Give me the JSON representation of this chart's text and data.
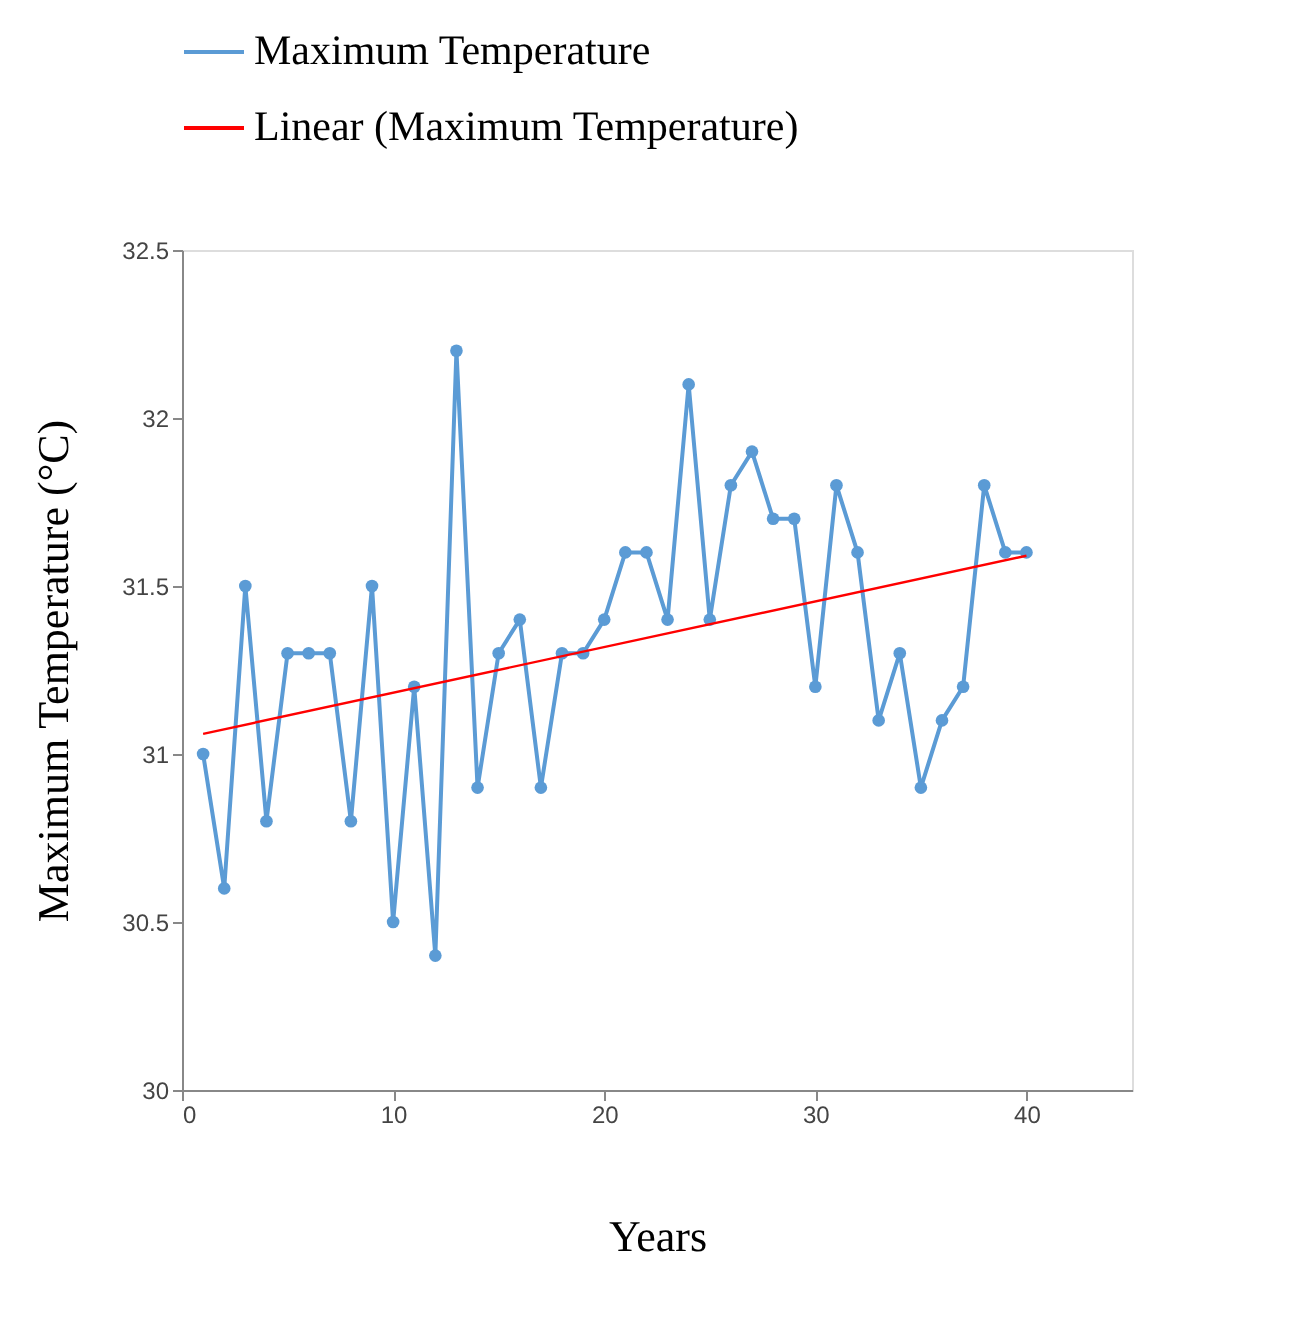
{
  "chart_data": {
    "type": "line",
    "xlabel": "Years",
    "ylabel": "Maximum Temperature (°C)",
    "x": [
      1,
      2,
      3,
      4,
      5,
      6,
      7,
      8,
      9,
      10,
      11,
      12,
      13,
      14,
      15,
      16,
      17,
      18,
      19,
      20,
      21,
      22,
      23,
      24,
      25,
      26,
      27,
      28,
      29,
      30,
      31,
      32,
      33,
      34,
      35,
      36,
      37,
      38,
      39,
      40
    ],
    "series": [
      {
        "name": "Maximum Temperature",
        "color": "#5b9bd5",
        "marker": "circle",
        "values": [
          31.0,
          30.6,
          31.5,
          30.8,
          31.3,
          31.3,
          31.3,
          30.8,
          31.5,
          30.5,
          31.2,
          30.4,
          32.2,
          30.9,
          31.3,
          31.4,
          30.9,
          31.3,
          31.3,
          31.4,
          31.6,
          31.6,
          31.4,
          32.1,
          31.4,
          31.8,
          31.9,
          31.7,
          31.7,
          31.2,
          31.8,
          31.6,
          31.1,
          31.3,
          30.9,
          31.1,
          31.2,
          31.8,
          31.6,
          31.6
        ]
      },
      {
        "name": "Linear (Maximum Temperature)",
        "type": "line",
        "color": "#ff0000",
        "marker": "none",
        "x": [
          1,
          40
        ],
        "values": [
          31.06,
          31.59
        ]
      }
    ],
    "xlim": [
      0,
      45
    ],
    "xticks": [
      0,
      10,
      20,
      30,
      40
    ],
    "ylim": [
      30,
      32.5
    ],
    "yticks": [
      30,
      30.5,
      31,
      31.5,
      32,
      32.5
    ],
    "grid": false,
    "legend": "top left",
    "line_style": "solid"
  }
}
